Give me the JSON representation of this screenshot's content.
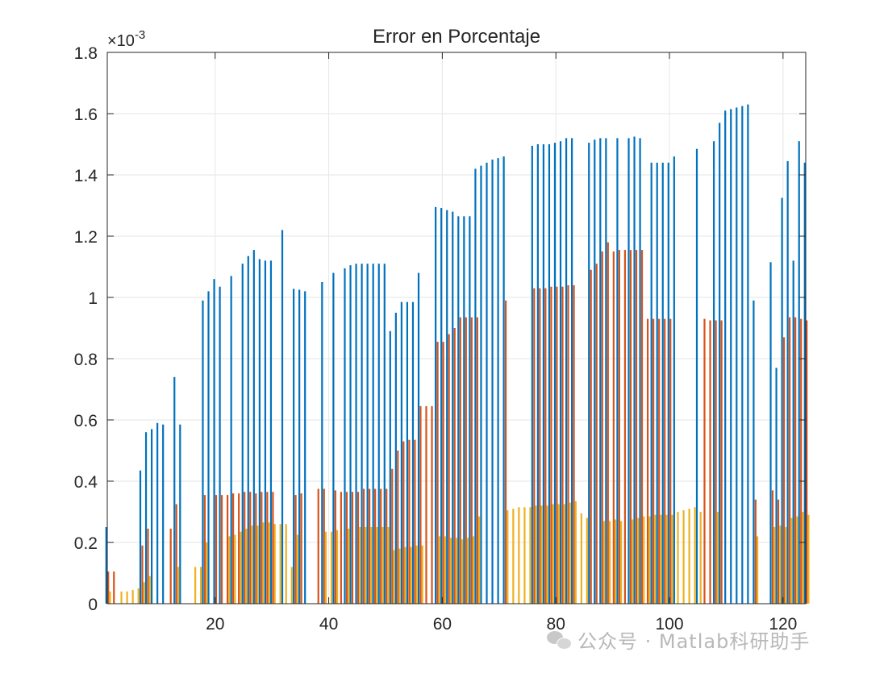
{
  "chart_data": {
    "type": "bar",
    "title": "Error en Porcentaje",
    "xlabel": "",
    "ylabel": "",
    "y_exponent_label": "×10",
    "y_exponent_power": "-3",
    "xlim": [
      1,
      124
    ],
    "ylim": [
      0,
      1.8
    ],
    "x_ticks": [
      20,
      40,
      60,
      80,
      100,
      120
    ],
    "y_ticks": [
      0,
      0.2,
      0.4,
      0.6,
      0.8,
      1,
      1.2,
      1.4,
      1.6,
      1.8
    ],
    "y_tick_labels": [
      "0",
      "0.2",
      "0.4",
      "0.6",
      "0.8",
      "1",
      "1.2",
      "1.4",
      "1.6",
      "1.8"
    ],
    "grid": true,
    "colors": [
      "#0072BD",
      "#D95319",
      "#EDB120"
    ],
    "series": [
      {
        "values": [
          0.25,
          0,
          0,
          0,
          0,
          0,
          0.435,
          0.56,
          0.57,
          0.59,
          0.585,
          0,
          0.74,
          0.585,
          0,
          0,
          0,
          0.99,
          1.02,
          1.06,
          1.035,
          0,
          1.07,
          0,
          1.11,
          1.135,
          1.155,
          1.125,
          1.12,
          1.12,
          0,
          1.22,
          0,
          1.028,
          1.025,
          1.02,
          0,
          0,
          1.05,
          0,
          1.08,
          0,
          1.095,
          1.105,
          1.11,
          1.11,
          1.11,
          1.11,
          1.11,
          1.11,
          0.89,
          0.95,
          0.985,
          0.985,
          0.985,
          1.08,
          0,
          0,
          1.295,
          1.292,
          1.285,
          1.28,
          1.265,
          1.265,
          1.265,
          1.42,
          1.43,
          1.44,
          1.45,
          1.455,
          1.46,
          0,
          0,
          0,
          0,
          1.495,
          1.5,
          1.5,
          1.5,
          1.505,
          1.51,
          1.52,
          1.52,
          0,
          0,
          1.505,
          1.515,
          1.52,
          1.52,
          0,
          1.52,
          0,
          1.52,
          1.525,
          1.52,
          0,
          1.44,
          1.44,
          1.44,
          1.44,
          1.46,
          0,
          0,
          0,
          1.485,
          0,
          0,
          1.51,
          1.57,
          1.61,
          1.615,
          1.62,
          1.625,
          1.63,
          0.99,
          0,
          0,
          1.115,
          0.77,
          1.325,
          1.445,
          1.12,
          1.51,
          1.44
        ]
      },
      {
        "values": [
          0.105,
          0.105,
          0,
          0,
          0,
          0,
          0.19,
          0.245,
          0,
          0,
          0,
          0.245,
          0.325,
          0,
          0,
          0,
          0,
          0.355,
          0,
          0.355,
          0.355,
          0.355,
          0.36,
          0.36,
          0.365,
          0.365,
          0.36,
          0.365,
          0.365,
          0.365,
          0,
          0,
          0,
          0.355,
          0.36,
          0,
          0,
          0.375,
          0.375,
          0,
          0.37,
          0.365,
          0.365,
          0.365,
          0.365,
          0.375,
          0.375,
          0.375,
          0.375,
          0.375,
          0.44,
          0.5,
          0.53,
          0.535,
          0.535,
          0.645,
          0.645,
          0.645,
          0.855,
          0.855,
          0.88,
          0.9,
          0.935,
          0.935,
          0.935,
          0.935,
          0,
          0,
          0,
          0,
          0.99,
          0,
          0,
          0,
          0,
          1.03,
          1.03,
          1.03,
          1.035,
          1.035,
          1.035,
          1.04,
          1.04,
          0,
          0,
          1.09,
          1.11,
          1.15,
          1.18,
          1.15,
          1.155,
          1.155,
          1.155,
          1.155,
          1.155,
          0.93,
          0.93,
          0.93,
          0.93,
          0.93,
          0,
          0,
          0,
          0,
          0,
          0.93,
          0.925,
          0.925,
          0.925,
          0,
          0,
          0,
          0,
          0,
          0.34,
          0,
          0,
          0.37,
          0.34,
          0.87,
          0.935,
          0.935,
          0.93,
          0.925
        ]
      },
      {
        "values": [
          0.04,
          0,
          0.04,
          0.04,
          0.045,
          0.05,
          0.07,
          0.09,
          0,
          0,
          0,
          0,
          0.12,
          0,
          0,
          0.12,
          0.12,
          0.2,
          0,
          0,
          0,
          0.22,
          0.225,
          0.235,
          0.245,
          0.255,
          0.255,
          0.265,
          0.265,
          0.26,
          0.26,
          0.26,
          0.12,
          0.225,
          0,
          0,
          0,
          0,
          0.235,
          0.235,
          0.24,
          0,
          0.245,
          0,
          0.25,
          0.25,
          0.25,
          0.25,
          0.25,
          0.25,
          0.175,
          0.18,
          0.185,
          0.185,
          0.19,
          0.19,
          0,
          0,
          0.22,
          0.22,
          0.215,
          0.215,
          0.21,
          0.215,
          0.22,
          0.285,
          0,
          0,
          0,
          0,
          0.305,
          0.31,
          0.315,
          0.315,
          0.315,
          0.32,
          0.32,
          0.32,
          0.325,
          0.325,
          0.325,
          0.33,
          0.335,
          0.295,
          0.28,
          0,
          0,
          0.27,
          0.27,
          0.275,
          0.27,
          0,
          0.275,
          0.28,
          0.285,
          0.285,
          0.29,
          0.29,
          0.29,
          0.29,
          0.3,
          0.305,
          0.31,
          0.315,
          0.3,
          0,
          0,
          0.3,
          0,
          0,
          0,
          0,
          0,
          0,
          0.22,
          0,
          0,
          0.25,
          0.255,
          0.25,
          0.28,
          0.285,
          0.3,
          0.29
        ]
      }
    ]
  },
  "watermark": {
    "icon": "wechat-icon",
    "text": "公众号 · Matlab科研助手"
  }
}
